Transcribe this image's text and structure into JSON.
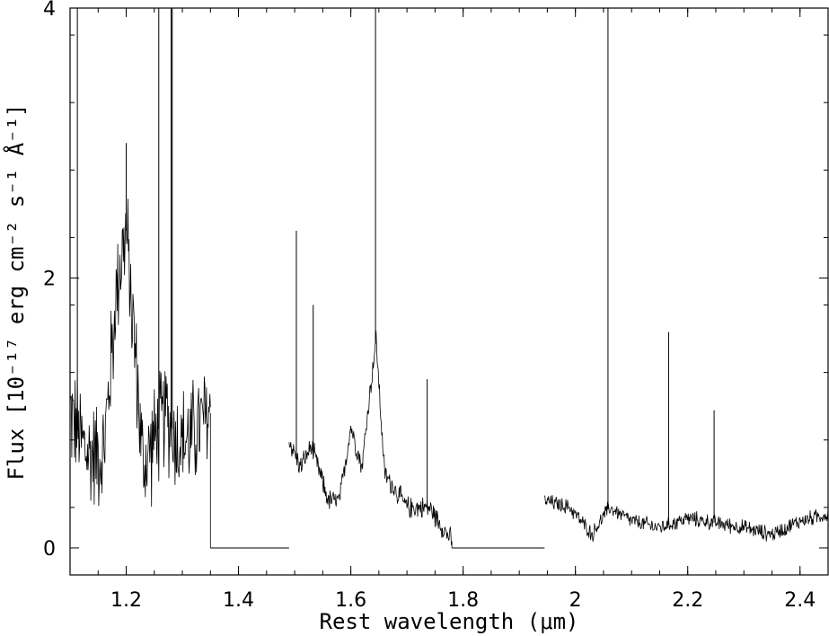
{
  "chart_data": {
    "type": "line",
    "title": "",
    "xlabel": "Rest wavelength (μm)",
    "ylabel": "Flux [10⁻¹⁷ erg cm⁻² s⁻¹ Å⁻¹]",
    "xlim": [
      1.1,
      2.45
    ],
    "ylim": [
      -0.2,
      4
    ],
    "x_ticks": [
      "1.2",
      "1.4",
      "1.6",
      "1.8",
      "2",
      "2.2",
      "2.4"
    ],
    "y_ticks": [
      "0",
      "2",
      "4"
    ],
    "grid": false,
    "legend": "none",
    "line_color": "#000000",
    "series": [
      {
        "gaps": [
          [
            1.35,
            1.49
          ],
          [
            1.78,
            1.945
          ]
        ],
        "segments": [
          {
            "x_range": [
              1.1,
              1.35
            ],
            "base_points": [
              [
                1.1,
                1.0
              ],
              [
                1.13,
                0.7
              ],
              [
                1.16,
                0.7
              ],
              [
                1.185,
                2.0
              ],
              [
                1.2,
                2.35
              ],
              [
                1.215,
                1.5
              ],
              [
                1.23,
                0.6
              ],
              [
                1.25,
                0.8
              ],
              [
                1.27,
                1.0
              ],
              [
                1.29,
                0.8
              ],
              [
                1.31,
                0.8
              ],
              [
                1.33,
                0.9
              ],
              [
                1.35,
                1.0
              ]
            ],
            "noise": 0.35
          },
          {
            "x_range": [
              1.49,
              1.78
            ],
            "base_points": [
              [
                1.49,
                0.8
              ],
              [
                1.51,
                0.6
              ],
              [
                1.53,
                0.75
              ],
              [
                1.56,
                0.35
              ],
              [
                1.58,
                0.35
              ],
              [
                1.6,
                0.9
              ],
              [
                1.62,
                0.6
              ],
              [
                1.63,
                1.0
              ],
              [
                1.645,
                1.55
              ],
              [
                1.66,
                0.55
              ],
              [
                1.7,
                0.3
              ],
              [
                1.74,
                0.3
              ],
              [
                1.78,
                0.05
              ]
            ],
            "noise": 0.07
          },
          {
            "x_range": [
              1.945,
              2.45
            ],
            "base_points": [
              [
                1.945,
                0.35
              ],
              [
                1.99,
                0.3
              ],
              [
                2.03,
                0.1
              ],
              [
                2.06,
                0.3
              ],
              [
                2.1,
                0.2
              ],
              [
                2.15,
                0.15
              ],
              [
                2.2,
                0.22
              ],
              [
                2.3,
                0.15
              ],
              [
                2.35,
                0.1
              ],
              [
                2.4,
                0.2
              ],
              [
                2.45,
                0.25
              ]
            ],
            "noise": 0.05
          }
        ],
        "lines": [
          {
            "x": 1.113,
            "y": 4.0
          },
          {
            "x": 1.2,
            "y": 3.0
          },
          {
            "x": 1.258,
            "y": 4.0
          },
          {
            "x": 1.28,
            "y": 4.0
          },
          {
            "x": 1.282,
            "y": 4.0
          },
          {
            "x": 1.503,
            "y": 2.35
          },
          {
            "x": 1.533,
            "y": 1.8
          },
          {
            "x": 1.644,
            "y": 4.0
          },
          {
            "x": 1.736,
            "y": 1.25
          },
          {
            "x": 2.058,
            "y": 4.0
          },
          {
            "x": 2.166,
            "y": 1.6
          },
          {
            "x": 2.247,
            "y": 1.02
          }
        ]
      }
    ]
  }
}
